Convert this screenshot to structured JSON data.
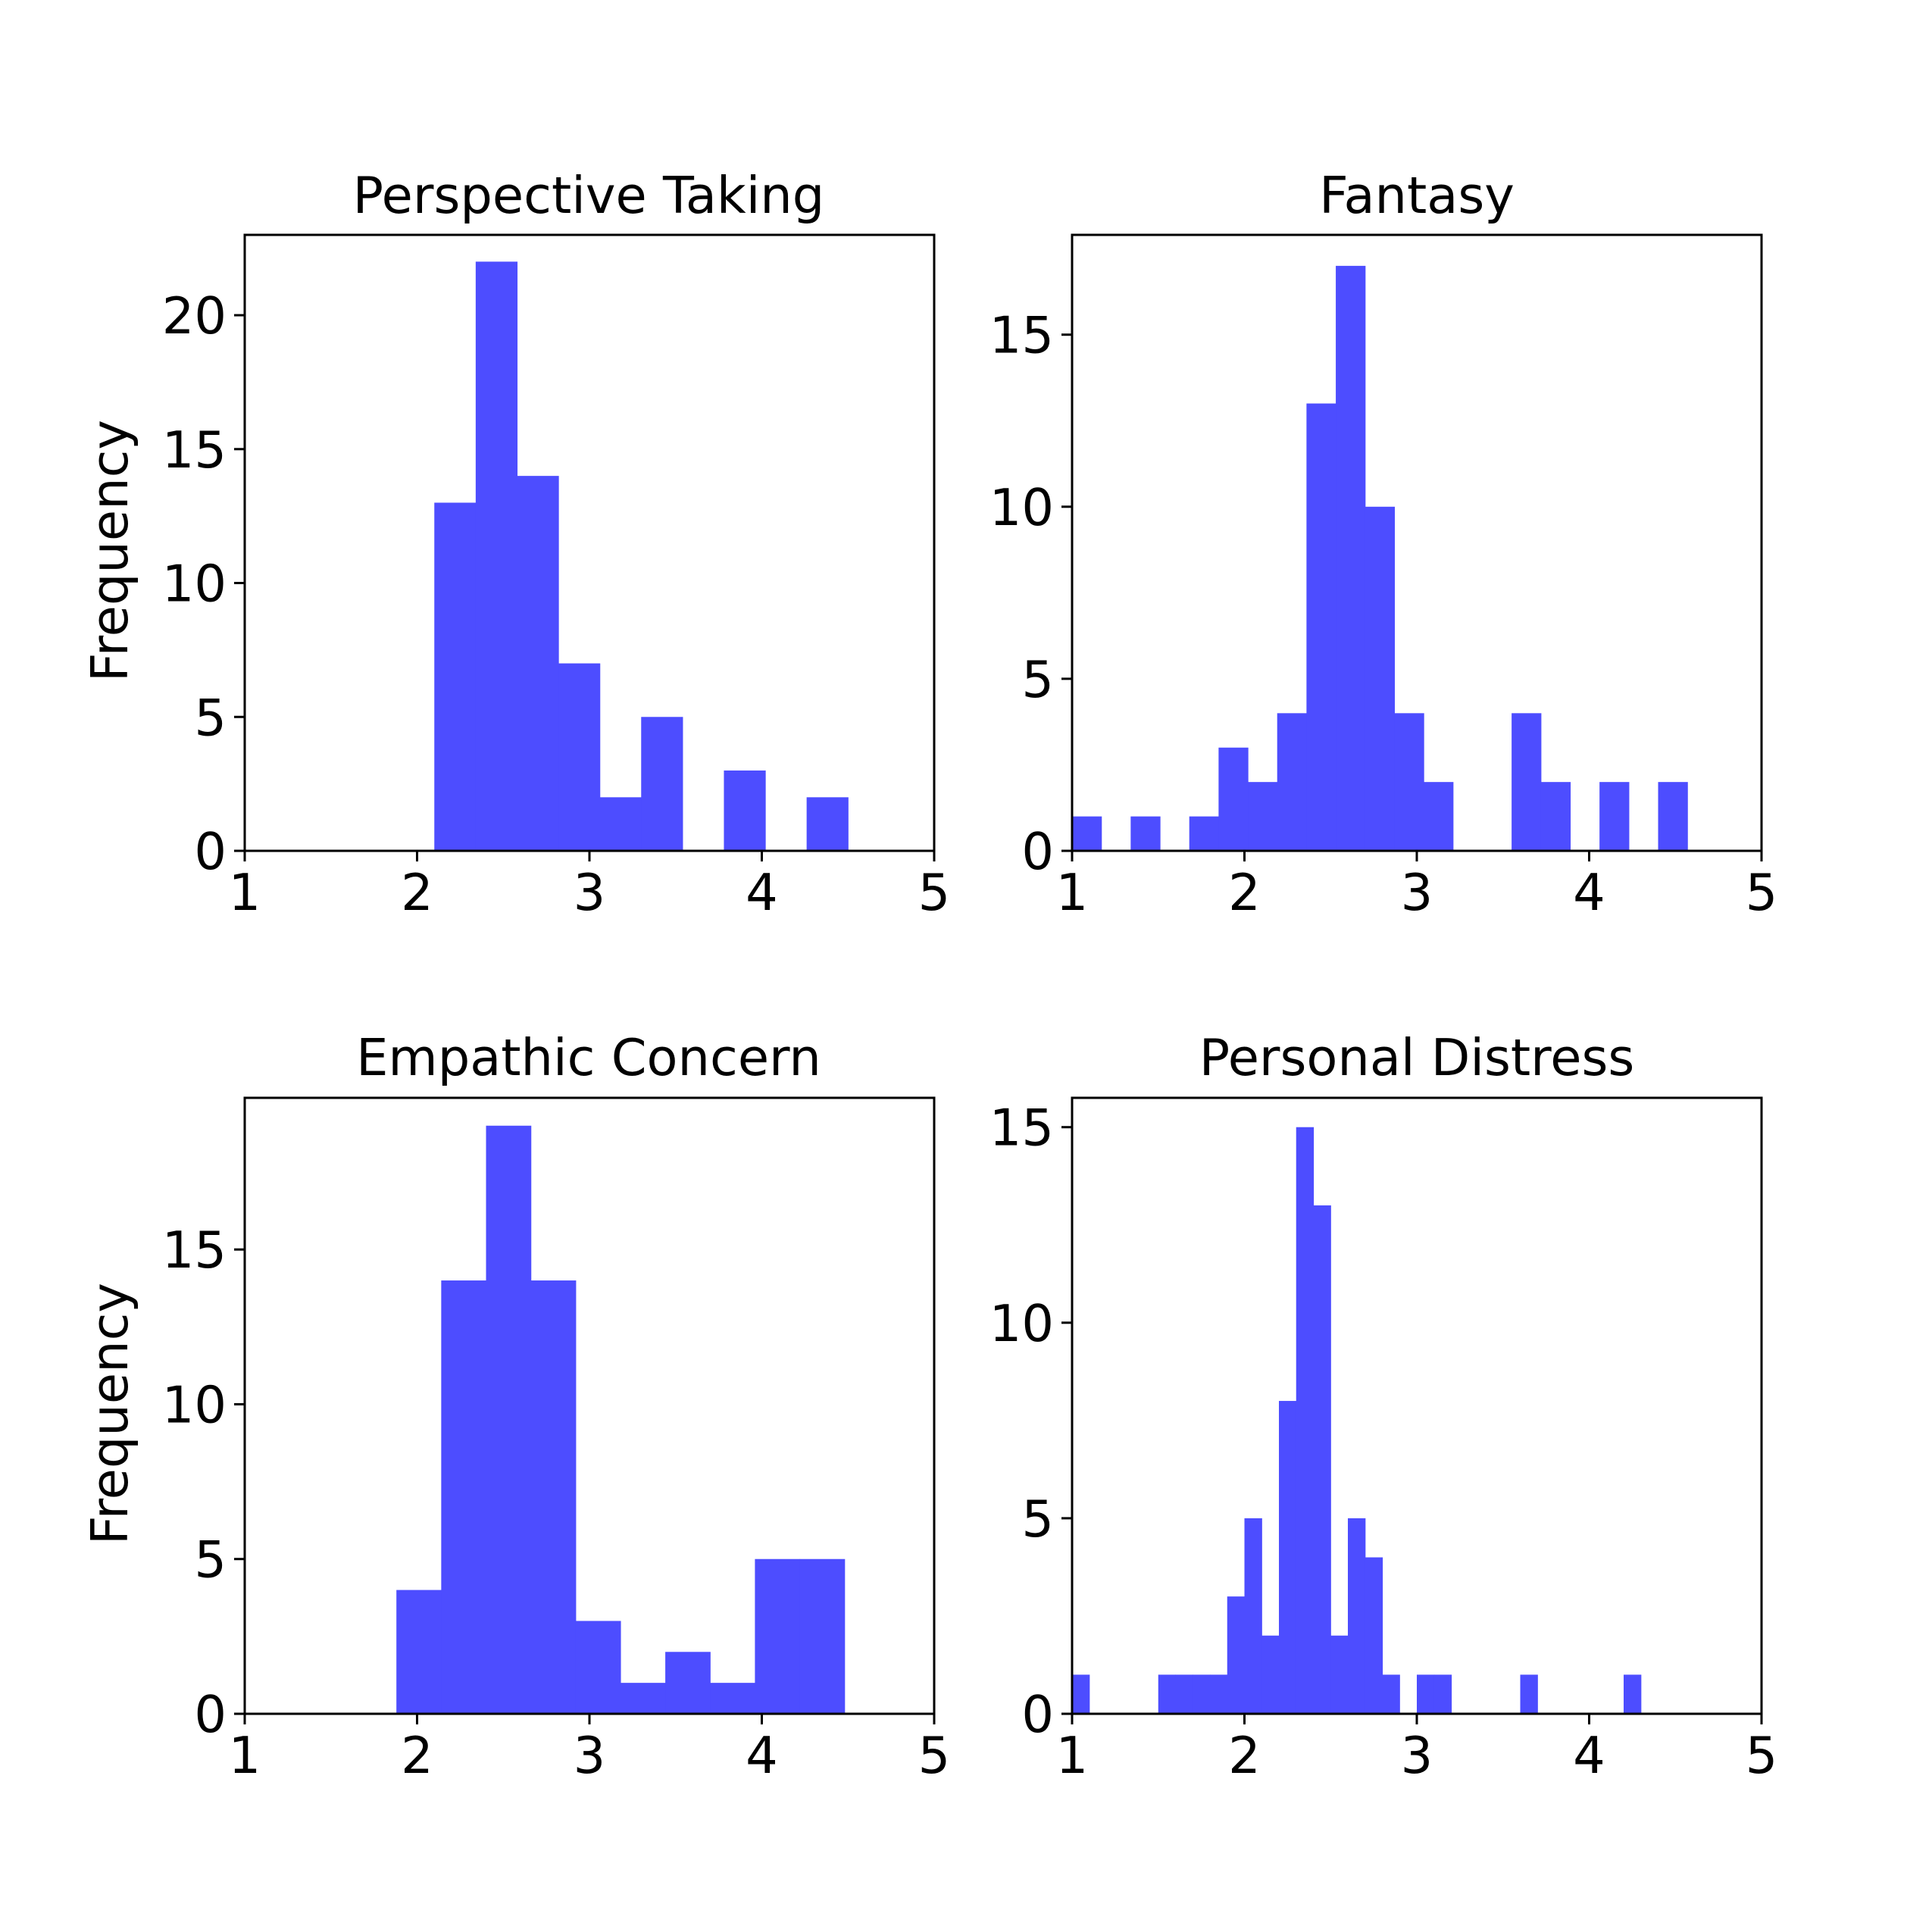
{
  "figure": {
    "background": "#ffffff",
    "bar_color": "#4d4dff"
  },
  "chart_data": [
    {
      "type": "bar",
      "title": "Perspective Taking",
      "xlabel": "",
      "ylabel": "Frequency",
      "xlim": [
        1,
        5
      ],
      "ylim": [
        0,
        23
      ],
      "xticks": [
        1,
        2,
        3,
        4,
        5
      ],
      "yticks": [
        0,
        5,
        10,
        15,
        20
      ],
      "bin_edges": [
        2.1,
        2.34,
        2.58,
        2.82,
        3.06,
        3.3,
        3.54,
        3.78,
        4.02,
        4.26,
        4.5
      ],
      "values": [
        13,
        22,
        14,
        7,
        2,
        5,
        0,
        3,
        0,
        2
      ]
    },
    {
      "type": "bar",
      "title": "Fantasy",
      "xlabel": "",
      "ylabel": "",
      "xlim": [
        1,
        5
      ],
      "ylim": [
        0,
        17.9
      ],
      "xticks": [
        1,
        2,
        3,
        4,
        5
      ],
      "yticks": [
        0,
        5,
        10,
        15
      ],
      "bin_edges": [
        1.0,
        1.17,
        1.34,
        1.51,
        1.68,
        1.85,
        2.02,
        2.19,
        2.36,
        2.53,
        2.7,
        2.87,
        3.04,
        3.21,
        3.38,
        3.55,
        3.72,
        3.89,
        4.06,
        4.23,
        4.4,
        4.57
      ],
      "values": [
        1,
        0,
        1,
        0,
        1,
        3,
        2,
        4,
        13,
        17,
        10,
        4,
        2,
        0,
        0,
        4,
        2,
        0,
        2,
        0,
        2
      ]
    },
    {
      "type": "bar",
      "title": "Empathic Concern",
      "xlabel": "",
      "ylabel": "Frequency",
      "xlim": [
        1,
        5
      ],
      "ylim": [
        0,
        19.9
      ],
      "xticks": [
        1,
        2,
        3,
        4,
        5
      ],
      "yticks": [
        0,
        5,
        10,
        15
      ],
      "bin_edges": [
        1.88,
        2.14,
        2.4,
        2.66,
        2.92,
        3.18,
        3.44,
        3.7,
        3.96,
        4.22,
        4.48
      ],
      "values": [
        4,
        14,
        19,
        14,
        3,
        1,
        2,
        1,
        5,
        5
      ]
    },
    {
      "type": "bar",
      "title": "Personal Distress",
      "xlabel": "",
      "ylabel": "",
      "xlim": [
        1,
        5
      ],
      "ylim": [
        0,
        15.75
      ],
      "xticks": [
        1,
        2,
        3,
        4,
        5
      ],
      "yticks": [
        0,
        5,
        10,
        15
      ],
      "bin_edges": [
        1.0,
        1.1,
        1.2,
        1.3,
        1.4,
        1.5,
        1.6,
        1.7,
        1.8,
        1.9,
        2.0,
        2.1,
        2.2,
        2.3,
        2.4,
        2.5,
        2.6,
        2.7,
        2.8,
        2.9,
        3.0,
        3.1,
        3.2,
        3.3,
        3.4,
        3.5,
        3.6,
        3.7,
        3.8,
        3.9,
        4.0,
        4.1,
        4.2,
        4.3
      ],
      "values": [
        1,
        0,
        0,
        0,
        0,
        1,
        1,
        1,
        1,
        3,
        5,
        2,
        8,
        15,
        13,
        2,
        5,
        4,
        1,
        0,
        1,
        1,
        0,
        0,
        0,
        0,
        1,
        0,
        0,
        0,
        0,
        0,
        1
      ]
    }
  ]
}
